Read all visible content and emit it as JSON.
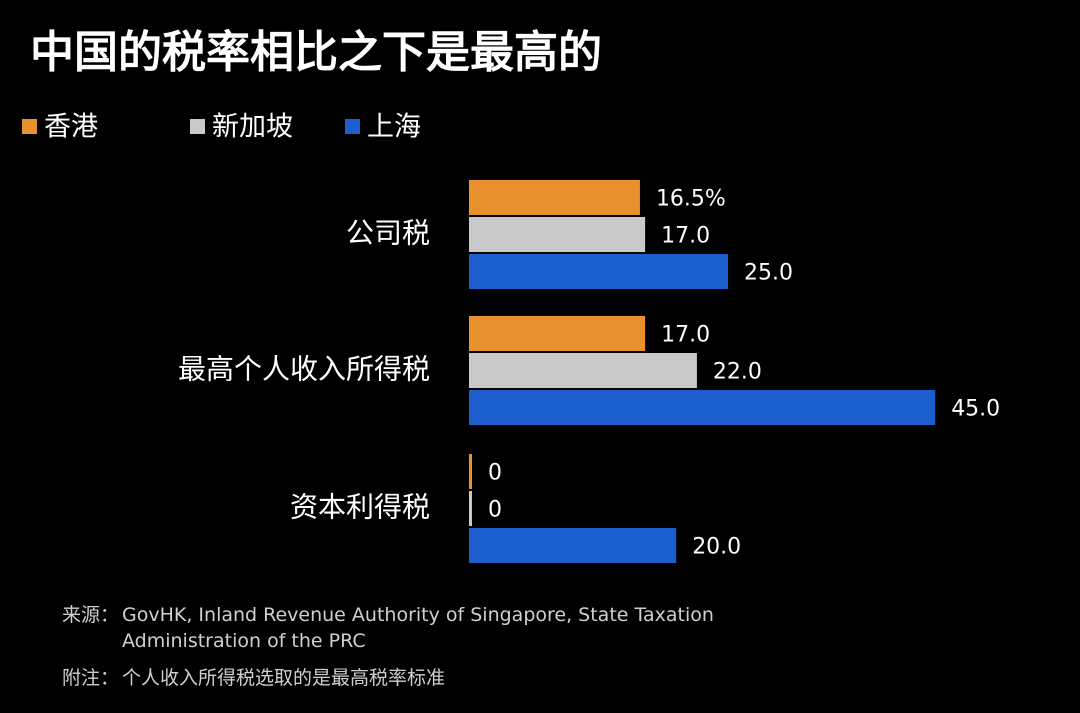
{
  "chart_data": {
    "type": "bar",
    "orientation": "horizontal",
    "title": "中国的税率相比之下是最高的",
    "categories": [
      "公司税",
      "最高个人收入所得税",
      "资本利得税"
    ],
    "series": [
      {
        "name": "香港",
        "color": "#e8912e",
        "values": [
          16.5,
          17,
          0
        ],
        "value_labels": [
          "16.5%",
          "17.0",
          "0"
        ]
      },
      {
        "name": "新加坡",
        "color": "#c9c9c9",
        "values": [
          17,
          22,
          0
        ],
        "value_labels": [
          "17.0",
          "22.0",
          "0"
        ]
      },
      {
        "name": "上海",
        "color": "#1b5fcf",
        "values": [
          25,
          45,
          20
        ],
        "value_labels": [
          "25.0",
          "45.0",
          "20.0"
        ]
      }
    ],
    "source_label": "来源：",
    "source": "GovHK, Inland Revenue Authority of Singapore, State Taxation Administration of the PRC",
    "note_label": "附注：",
    "note": "个人收入所得税选取的是最高税率标准"
  }
}
